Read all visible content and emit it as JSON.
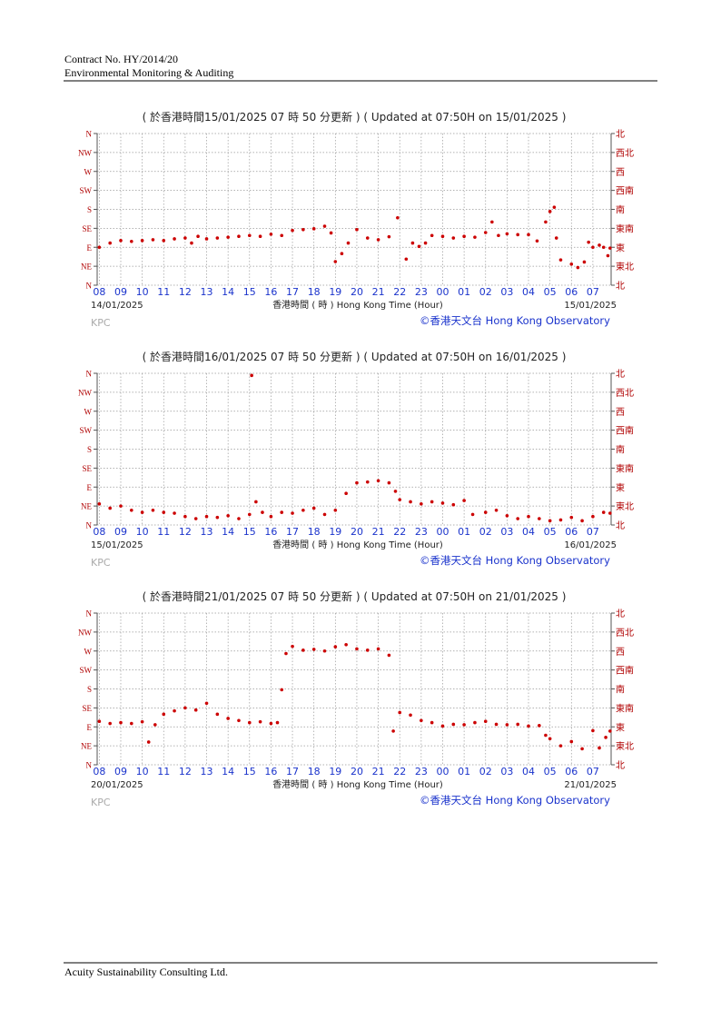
{
  "header": {
    "line1": "Contract No. HY/2014/20",
    "line2": "Environmental Monitoring & Auditing"
  },
  "footer": "Acuity Sustainability Consulting Ltd.",
  "chart_data": [
    {
      "type": "scatter",
      "title": "( 於香港時間15/01/2025 07 時 50 分更新 ) ( Updated at 07:50H on 15/01/2025 )",
      "start_date": "14/01/2025",
      "end_date": "15/01/2025",
      "xlabel": "香港時間 ( 時 ) Hong Kong Time (Hour)",
      "source": "©香港天文台 Hong Kong Observatory",
      "station": "KPC",
      "color": "#cc0000",
      "grid": true,
      "xlim": [
        -0.1,
        23.85
      ],
      "ylim": [
        0,
        360
      ],
      "y2lim": [
        0,
        360
      ],
      "xticks": [
        {
          "value": 0,
          "label": "08"
        },
        {
          "value": 1,
          "label": "09"
        },
        {
          "value": 2,
          "label": "10"
        },
        {
          "value": 3,
          "label": "11"
        },
        {
          "value": 4,
          "label": "12"
        },
        {
          "value": 5,
          "label": "13"
        },
        {
          "value": 6,
          "label": "14"
        },
        {
          "value": 7,
          "label": "15"
        },
        {
          "value": 8,
          "label": "16"
        },
        {
          "value": 9,
          "label": "17"
        },
        {
          "value": 10,
          "label": "18"
        },
        {
          "value": 11,
          "label": "19"
        },
        {
          "value": 12,
          "label": "20"
        },
        {
          "value": 13,
          "label": "21"
        },
        {
          "value": 14,
          "label": "22"
        },
        {
          "value": 15,
          "label": "23"
        },
        {
          "value": 16,
          "label": "00"
        },
        {
          "value": 17,
          "label": "01"
        },
        {
          "value": 18,
          "label": "02"
        },
        {
          "value": 19,
          "label": "03"
        },
        {
          "value": 20,
          "label": "04"
        },
        {
          "value": 21,
          "label": "05"
        },
        {
          "value": 22,
          "label": "06"
        },
        {
          "value": 23,
          "label": "07"
        }
      ],
      "yticks": [
        {
          "value": 0,
          "label": "N"
        },
        {
          "value": 45,
          "label": "NE"
        },
        {
          "value": 90,
          "label": "E"
        },
        {
          "value": 135,
          "label": "SE"
        },
        {
          "value": 180,
          "label": "S"
        },
        {
          "value": 225,
          "label": "SW"
        },
        {
          "value": 270,
          "label": "W"
        },
        {
          "value": 315,
          "label": "NW"
        },
        {
          "value": 360,
          "label": "N"
        }
      ],
      "y2ticks": [
        {
          "value": 0,
          "label": "北"
        },
        {
          "value": 45,
          "label": "東北"
        },
        {
          "value": 90,
          "label": "東"
        },
        {
          "value": 135,
          "label": "東南"
        },
        {
          "value": 180,
          "label": "南"
        },
        {
          "value": 225,
          "label": "西南"
        },
        {
          "value": 270,
          "label": "西"
        },
        {
          "value": 315,
          "label": "西北"
        },
        {
          "value": 360,
          "label": "北"
        }
      ],
      "x": [
        0,
        0.5,
        1,
        1.5,
        2,
        2.5,
        3,
        3.5,
        4,
        4.3,
        4.6,
        5,
        5.5,
        6,
        6.5,
        7,
        7.5,
        8,
        8.5,
        9,
        9.5,
        10,
        10.5,
        10.8,
        11,
        11.3,
        11.6,
        12,
        12.5,
        13,
        13.5,
        13.9,
        14.3,
        14.6,
        14.9,
        15.2,
        15.5,
        16,
        16.5,
        17,
        17.5,
        18,
        18.3,
        18.6,
        19,
        19.5,
        20,
        20.4,
        20.8,
        21,
        21.2,
        21.3,
        21.5,
        22,
        22.3,
        22.6,
        22.8,
        23,
        23.3,
        23.5,
        23.7,
        23.8
      ],
      "values": [
        90,
        100,
        106,
        104,
        106,
        108,
        106,
        110,
        112,
        100,
        116,
        110,
        112,
        114,
        116,
        118,
        116,
        121,
        118,
        130,
        132,
        134,
        140,
        124,
        56,
        75,
        100,
        132,
        112,
        108,
        115,
        160,
        62,
        100,
        92,
        100,
        118,
        116,
        112,
        116,
        114,
        125,
        150,
        118,
        122,
        120,
        120,
        105,
        150,
        175,
        185,
        112,
        60,
        50,
        42,
        55,
        102,
        90,
        95,
        90,
        70,
        88
      ]
    },
    {
      "type": "scatter",
      "title": "( 於香港時間16/01/2025 07 時 50 分更新 ) ( Updated at 07:50H on 16/01/2025 )",
      "start_date": "15/01/2025",
      "end_date": "16/01/2025",
      "xlabel": "香港時間 ( 時 ) Hong Kong Time (Hour)",
      "source": "©香港天文台 Hong Kong Observatory",
      "station": "KPC",
      "color": "#cc0000",
      "grid": true,
      "xlim": [
        -0.1,
        23.85
      ],
      "ylim": [
        0,
        360
      ],
      "y2lim": [
        0,
        360
      ],
      "xticks": [
        {
          "value": 0,
          "label": "08"
        },
        {
          "value": 1,
          "label": "09"
        },
        {
          "value": 2,
          "label": "10"
        },
        {
          "value": 3,
          "label": "11"
        },
        {
          "value": 4,
          "label": "12"
        },
        {
          "value": 5,
          "label": "13"
        },
        {
          "value": 6,
          "label": "14"
        },
        {
          "value": 7,
          "label": "15"
        },
        {
          "value": 8,
          "label": "16"
        },
        {
          "value": 9,
          "label": "17"
        },
        {
          "value": 10,
          "label": "18"
        },
        {
          "value": 11,
          "label": "19"
        },
        {
          "value": 12,
          "label": "20"
        },
        {
          "value": 13,
          "label": "21"
        },
        {
          "value": 14,
          "label": "22"
        },
        {
          "value": 15,
          "label": "23"
        },
        {
          "value": 16,
          "label": "00"
        },
        {
          "value": 17,
          "label": "01"
        },
        {
          "value": 18,
          "label": "02"
        },
        {
          "value": 19,
          "label": "03"
        },
        {
          "value": 20,
          "label": "04"
        },
        {
          "value": 21,
          "label": "05"
        },
        {
          "value": 22,
          "label": "06"
        },
        {
          "value": 23,
          "label": "07"
        }
      ],
      "yticks": [
        {
          "value": 0,
          "label": "N"
        },
        {
          "value": 45,
          "label": "NE"
        },
        {
          "value": 90,
          "label": "E"
        },
        {
          "value": 135,
          "label": "SE"
        },
        {
          "value": 180,
          "label": "S"
        },
        {
          "value": 225,
          "label": "SW"
        },
        {
          "value": 270,
          "label": "W"
        },
        {
          "value": 315,
          "label": "NW"
        },
        {
          "value": 360,
          "label": "N"
        }
      ],
      "y2ticks": [
        {
          "value": 0,
          "label": "北"
        },
        {
          "value": 45,
          "label": "東北"
        },
        {
          "value": 90,
          "label": "東"
        },
        {
          "value": 135,
          "label": "東南"
        },
        {
          "value": 180,
          "label": "南"
        },
        {
          "value": 225,
          "label": "西南"
        },
        {
          "value": 270,
          "label": "西"
        },
        {
          "value": 315,
          "label": "西北"
        },
        {
          "value": 360,
          "label": "北"
        }
      ],
      "x": [
        0,
        0.5,
        1,
        1.5,
        2,
        2.5,
        3,
        3.5,
        4,
        4.5,
        5,
        5.5,
        6,
        6.5,
        7,
        7.1,
        7.3,
        7.6,
        8,
        8.5,
        9,
        9.5,
        10,
        10.5,
        11,
        11.5,
        12,
        12.5,
        13,
        13.5,
        13.8,
        14,
        14.5,
        15,
        15.5,
        16,
        16.5,
        17,
        17.4,
        18,
        18.5,
        19,
        19.5,
        20,
        20.5,
        21,
        21.5,
        22,
        22.5,
        23,
        23.5,
        23.8
      ],
      "values": [
        50,
        40,
        45,
        35,
        30,
        35,
        30,
        28,
        20,
        15,
        20,
        18,
        22,
        15,
        25,
        355,
        55,
        30,
        20,
        30,
        28,
        35,
        40,
        25,
        35,
        75,
        100,
        102,
        105,
        100,
        80,
        60,
        55,
        50,
        55,
        52,
        48,
        58,
        25,
        30,
        35,
        22,
        15,
        20,
        15,
        10,
        12,
        18,
        10,
        20,
        30,
        28
      ]
    },
    {
      "type": "scatter",
      "title": "( 於香港時間21/01/2025 07 時 50 分更新 ) ( Updated at 07:50H on 21/01/2025 )",
      "start_date": "20/01/2025",
      "end_date": "21/01/2025",
      "xlabel": "香港時間 ( 時 ) Hong Kong Time (Hour)",
      "source": "©香港天文台 Hong Kong Observatory",
      "station": "KPC",
      "color": "#cc0000",
      "grid": true,
      "xlim": [
        -0.1,
        23.85
      ],
      "ylim": [
        0,
        360
      ],
      "y2lim": [
        0,
        360
      ],
      "xticks": [
        {
          "value": 0,
          "label": "08"
        },
        {
          "value": 1,
          "label": "09"
        },
        {
          "value": 2,
          "label": "10"
        },
        {
          "value": 3,
          "label": "11"
        },
        {
          "value": 4,
          "label": "12"
        },
        {
          "value": 5,
          "label": "13"
        },
        {
          "value": 6,
          "label": "14"
        },
        {
          "value": 7,
          "label": "15"
        },
        {
          "value": 8,
          "label": "16"
        },
        {
          "value": 9,
          "label": "17"
        },
        {
          "value": 10,
          "label": "18"
        },
        {
          "value": 11,
          "label": "19"
        },
        {
          "value": 12,
          "label": "20"
        },
        {
          "value": 13,
          "label": "21"
        },
        {
          "value": 14,
          "label": "22"
        },
        {
          "value": 15,
          "label": "23"
        },
        {
          "value": 16,
          "label": "00"
        },
        {
          "value": 17,
          "label": "01"
        },
        {
          "value": 18,
          "label": "02"
        },
        {
          "value": 19,
          "label": "03"
        },
        {
          "value": 20,
          "label": "04"
        },
        {
          "value": 21,
          "label": "05"
        },
        {
          "value": 22,
          "label": "06"
        },
        {
          "value": 23,
          "label": "07"
        }
      ],
      "yticks": [
        {
          "value": 0,
          "label": "N"
        },
        {
          "value": 45,
          "label": "NE"
        },
        {
          "value": 90,
          "label": "E"
        },
        {
          "value": 135,
          "label": "SE"
        },
        {
          "value": 180,
          "label": "S"
        },
        {
          "value": 225,
          "label": "SW"
        },
        {
          "value": 270,
          "label": "W"
        },
        {
          "value": 315,
          "label": "NW"
        },
        {
          "value": 360,
          "label": "N"
        }
      ],
      "y2ticks": [
        {
          "value": 0,
          "label": "北"
        },
        {
          "value": 45,
          "label": "東北"
        },
        {
          "value": 90,
          "label": "東"
        },
        {
          "value": 135,
          "label": "東南"
        },
        {
          "value": 180,
          "label": "南"
        },
        {
          "value": 225,
          "label": "西南"
        },
        {
          "value": 270,
          "label": "西"
        },
        {
          "value": 315,
          "label": "西北"
        },
        {
          "value": 360,
          "label": "北"
        }
      ],
      "x": [
        0,
        0.5,
        1,
        1.5,
        2,
        2.3,
        2.6,
        3,
        3.5,
        4,
        4.5,
        5,
        5.5,
        6,
        6.5,
        7,
        7.5,
        8,
        8.3,
        8.5,
        8.7,
        9,
        9.5,
        10,
        10.5,
        11,
        11.5,
        12,
        12.5,
        13,
        13.5,
        13.7,
        14,
        14.5,
        15,
        15.5,
        16,
        16.5,
        17,
        17.5,
        18,
        18.5,
        19,
        19.5,
        20,
        20.5,
        20.8,
        21,
        21.5,
        22,
        22.5,
        23,
        23.3,
        23.6,
        23.8
      ],
      "values": [
        103,
        98,
        100,
        98,
        102,
        54,
        95,
        120,
        128,
        135,
        130,
        146,
        120,
        110,
        105,
        100,
        102,
        98,
        100,
        178,
        264,
        281,
        272,
        274,
        270,
        280,
        285,
        275,
        272,
        275,
        260,
        80,
        124,
        118,
        105,
        100,
        92,
        96,
        95,
        100,
        103,
        96,
        95,
        96,
        92,
        93,
        70,
        62,
        45,
        55,
        38,
        81,
        40,
        65,
        80
      ]
    }
  ]
}
